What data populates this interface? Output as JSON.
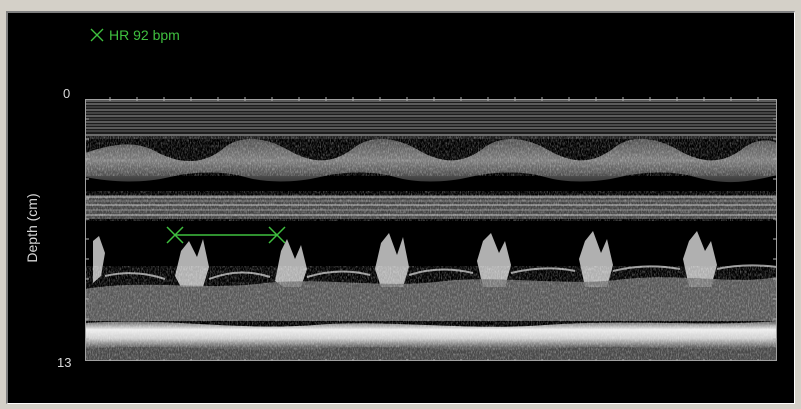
{
  "heart_rate": {
    "label": "HR 92 bpm",
    "marker_icon": "x-cross-icon",
    "color": "#3fbf3f"
  },
  "depth_axis": {
    "title": "Depth (cm)",
    "top_label": "0",
    "bottom_label": "13"
  },
  "colors": {
    "background": "#000000",
    "frame": "#d4d0c8",
    "caliper": "#3fbf3f",
    "axis_text": "#d8d8d8",
    "tick": "#b0b0b0"
  },
  "caliper": {
    "marker_icon": "x-cross-icon"
  }
}
